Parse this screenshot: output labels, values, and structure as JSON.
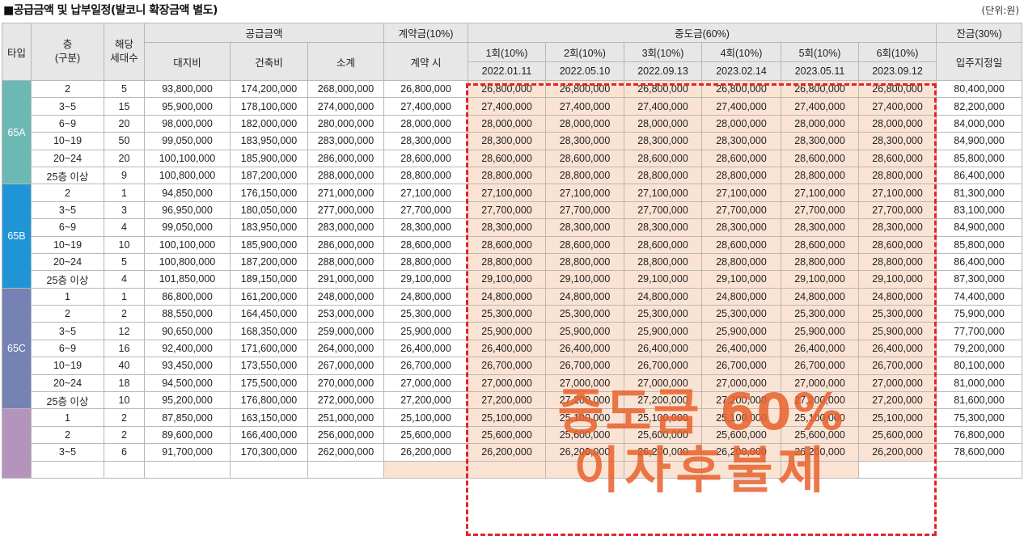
{
  "title": "■공급금액 및 납부일정(발코니 확장금액 별도)",
  "unit": "(단위:원)",
  "header": {
    "type": "타입",
    "floor": "층\n(구분)",
    "units": "해당\n세대수",
    "supply": "공급금액",
    "land": "대지비",
    "building": "건축비",
    "subtotal": "소계",
    "deposit": "계약금(10%)",
    "deposit_when": "계약 시",
    "middle": "중도금(60%)",
    "balance": "잔금(30%)",
    "balance_when": "입주지정일",
    "installments": [
      {
        "label": "1회(10%)",
        "date": "2022.01.11"
      },
      {
        "label": "2회(10%)",
        "date": "2022.05.10"
      },
      {
        "label": "3회(10%)",
        "date": "2022.09.13"
      },
      {
        "label": "4회(10%)",
        "date": "2023.02.14"
      },
      {
        "label": "5회(10%)",
        "date": "2023.05.11"
      },
      {
        "label": "6회(10%)",
        "date": "2023.09.12"
      }
    ]
  },
  "stamp": {
    "line1": "중도금 60%",
    "line2": "이자후불제"
  },
  "colors": {
    "65A": "#6cb8b4",
    "65B": "#1f95d6",
    "65C": "#7582b3",
    "65D": "#b493bd",
    "highlight": "#fbe3d3",
    "frame": "#e2232a"
  },
  "groups": [
    {
      "type": "65A",
      "rows": [
        {
          "floor": "2",
          "units": "5",
          "land": "93,800,000",
          "building": "174,200,000",
          "subtotal": "268,000,000",
          "deposit": "26,800,000",
          "mid": "26,800,000",
          "balance": "80,400,000"
        },
        {
          "floor": "3~5",
          "units": "15",
          "land": "95,900,000",
          "building": "178,100,000",
          "subtotal": "274,000,000",
          "deposit": "27,400,000",
          "mid": "27,400,000",
          "balance": "82,200,000"
        },
        {
          "floor": "6~9",
          "units": "20",
          "land": "98,000,000",
          "building": "182,000,000",
          "subtotal": "280,000,000",
          "deposit": "28,000,000",
          "mid": "28,000,000",
          "balance": "84,000,000"
        },
        {
          "floor": "10~19",
          "units": "50",
          "land": "99,050,000",
          "building": "183,950,000",
          "subtotal": "283,000,000",
          "deposit": "28,300,000",
          "mid": "28,300,000",
          "balance": "84,900,000"
        },
        {
          "floor": "20~24",
          "units": "20",
          "land": "100,100,000",
          "building": "185,900,000",
          "subtotal": "286,000,000",
          "deposit": "28,600,000",
          "mid": "28,600,000",
          "balance": "85,800,000"
        },
        {
          "floor": "25층 이상",
          "units": "9",
          "land": "100,800,000",
          "building": "187,200,000",
          "subtotal": "288,000,000",
          "deposit": "28,800,000",
          "mid": "28,800,000",
          "balance": "86,400,000"
        }
      ]
    },
    {
      "type": "65B",
      "rows": [
        {
          "floor": "2",
          "units": "1",
          "land": "94,850,000",
          "building": "176,150,000",
          "subtotal": "271,000,000",
          "deposit": "27,100,000",
          "mid": "27,100,000",
          "balance": "81,300,000"
        },
        {
          "floor": "3~5",
          "units": "3",
          "land": "96,950,000",
          "building": "180,050,000",
          "subtotal": "277,000,000",
          "deposit": "27,700,000",
          "mid": "27,700,000",
          "balance": "83,100,000"
        },
        {
          "floor": "6~9",
          "units": "4",
          "land": "99,050,000",
          "building": "183,950,000",
          "subtotal": "283,000,000",
          "deposit": "28,300,000",
          "mid": "28,300,000",
          "balance": "84,900,000"
        },
        {
          "floor": "10~19",
          "units": "10",
          "land": "100,100,000",
          "building": "185,900,000",
          "subtotal": "286,000,000",
          "deposit": "28,600,000",
          "mid": "28,600,000",
          "balance": "85,800,000"
        },
        {
          "floor": "20~24",
          "units": "5",
          "land": "100,800,000",
          "building": "187,200,000",
          "subtotal": "288,000,000",
          "deposit": "28,800,000",
          "mid": "28,800,000",
          "balance": "86,400,000"
        },
        {
          "floor": "25층 이상",
          "units": "4",
          "land": "101,850,000",
          "building": "189,150,000",
          "subtotal": "291,000,000",
          "deposit": "29,100,000",
          "mid": "29,100,000",
          "balance": "87,300,000"
        }
      ]
    },
    {
      "type": "65C",
      "rows": [
        {
          "floor": "1",
          "units": "1",
          "land": "86,800,000",
          "building": "161,200,000",
          "subtotal": "248,000,000",
          "deposit": "24,800,000",
          "mid": "24,800,000",
          "balance": "74,400,000"
        },
        {
          "floor": "2",
          "units": "2",
          "land": "88,550,000",
          "building": "164,450,000",
          "subtotal": "253,000,000",
          "deposit": "25,300,000",
          "mid": "25,300,000",
          "balance": "75,900,000"
        },
        {
          "floor": "3~5",
          "units": "12",
          "land": "90,650,000",
          "building": "168,350,000",
          "subtotal": "259,000,000",
          "deposit": "25,900,000",
          "mid": "25,900,000",
          "balance": "77,700,000"
        },
        {
          "floor": "6~9",
          "units": "16",
          "land": "92,400,000",
          "building": "171,600,000",
          "subtotal": "264,000,000",
          "deposit": "26,400,000",
          "mid": "26,400,000",
          "balance": "79,200,000"
        },
        {
          "floor": "10~19",
          "units": "40",
          "land": "93,450,000",
          "building": "173,550,000",
          "subtotal": "267,000,000",
          "deposit": "26,700,000",
          "mid": "26,700,000",
          "balance": "80,100,000"
        },
        {
          "floor": "20~24",
          "units": "18",
          "land": "94,500,000",
          "building": "175,500,000",
          "subtotal": "270,000,000",
          "deposit": "27,000,000",
          "mid": "27,000,000",
          "balance": "81,000,000"
        },
        {
          "floor": "25층 이상",
          "units": "10",
          "land": "95,200,000",
          "building": "176,800,000",
          "subtotal": "272,000,000",
          "deposit": "27,200,000",
          "mid": "27,200,000",
          "balance": "81,600,000"
        }
      ]
    },
    {
      "type": "",
      "rows": [
        {
          "floor": "1",
          "units": "2",
          "land": "87,850,000",
          "building": "163,150,000",
          "subtotal": "251,000,000",
          "deposit": "25,100,000",
          "mid": "25,100,000",
          "balance": "75,300,000"
        },
        {
          "floor": "2",
          "units": "2",
          "land": "89,600,000",
          "building": "166,400,000",
          "subtotal": "256,000,000",
          "deposit": "25,600,000",
          "mid": "25,600,000",
          "balance": "76,800,000"
        },
        {
          "floor": "3~5",
          "units": "6",
          "land": "91,700,000",
          "building": "170,300,000",
          "subtotal": "262,000,000",
          "deposit": "26,200,000",
          "mid": "26,200,000",
          "balance": "78,600,000"
        }
      ]
    }
  ]
}
